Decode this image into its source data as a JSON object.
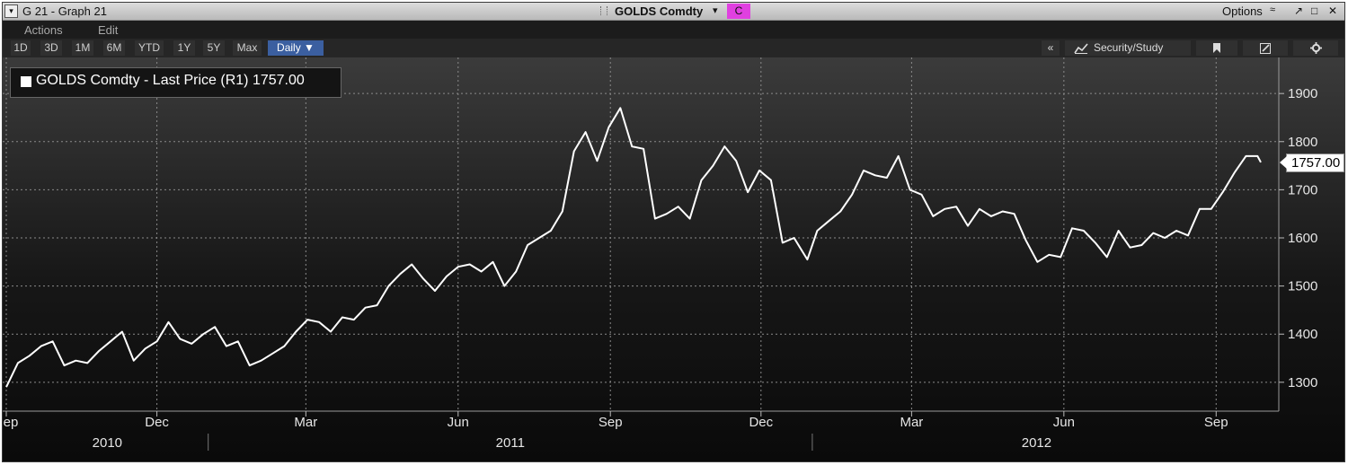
{
  "window": {
    "title": "G 21 - Graph 21",
    "dropdown_glyph": "▾",
    "ticker": "GOLDS Comdty",
    "ticker_caret": "▾",
    "c_badge": "C",
    "options_label": "Options",
    "options_caret": "≈",
    "buttons": {
      "popout": "↗",
      "minimize": "□",
      "close": "✕"
    }
  },
  "menu": {
    "actions": "Actions",
    "edit": "Edit"
  },
  "toolbar": {
    "ranges": [
      "1D",
      "3D",
      "1M",
      "6M",
      "YTD",
      "1Y",
      "5Y",
      "Max"
    ],
    "period": "Daily ▼",
    "collapse": "«",
    "security_study": "Security/Study",
    "security_icon": "chart-line-icon",
    "bookmark_icon": "bookmark-icon",
    "edit_icon": "pencil-icon",
    "settings_icon": "gear-icon"
  },
  "colors": {
    "accent_c": "#e040e0",
    "active_button": "#3b5fa0",
    "line": "#ffffff"
  },
  "chart_data": {
    "type": "line",
    "legend_text": "GOLDS Comdty - Last Price (R1) 1757.00",
    "last_value_label": "1757.00",
    "last_value": 1757,
    "y_axis_side": "right",
    "ylim": [
      1240,
      1960
    ],
    "y_ticks": [
      1300,
      1400,
      1500,
      1600,
      1700,
      1800,
      1900
    ],
    "x_range": [
      "2010-09-01",
      "2012-09-28"
    ],
    "x_ticks": [
      {
        "label": "Sep",
        "date": "2010-09-01"
      },
      {
        "label": "Dec",
        "date": "2010-12-01"
      },
      {
        "label": "Mar",
        "date": "2011-03-01"
      },
      {
        "label": "Jun",
        "date": "2011-06-01"
      },
      {
        "label": "Sep",
        "date": "2011-09-01"
      },
      {
        "label": "Dec",
        "date": "2011-12-01"
      },
      {
        "label": "Mar",
        "date": "2012-03-01"
      },
      {
        "label": "Jun",
        "date": "2012-06-01"
      },
      {
        "label": "Sep",
        "date": "2012-09-01"
      }
    ],
    "years": [
      {
        "label": "2010",
        "from": "2010-09-01",
        "to": "2011-01-01"
      },
      {
        "label": "2011",
        "from": "2011-01-01",
        "to": "2012-01-01"
      },
      {
        "label": "2012",
        "from": "2012-01-01",
        "to": "2012-09-28"
      }
    ],
    "grid": true,
    "series": [
      {
        "name": "GOLDS Comdty",
        "points": [
          [
            "2010-09-01",
            1290
          ],
          [
            "2010-09-08",
            1340
          ],
          [
            "2010-09-15",
            1355
          ],
          [
            "2010-09-22",
            1375
          ],
          [
            "2010-09-29",
            1385
          ],
          [
            "2010-10-06",
            1335
          ],
          [
            "2010-10-13",
            1345
          ],
          [
            "2010-10-20",
            1340
          ],
          [
            "2010-10-27",
            1365
          ],
          [
            "2010-11-03",
            1385
          ],
          [
            "2010-11-10",
            1405
          ],
          [
            "2010-11-17",
            1345
          ],
          [
            "2010-11-24",
            1370
          ],
          [
            "2010-12-01",
            1385
          ],
          [
            "2010-12-08",
            1425
          ],
          [
            "2010-12-15",
            1390
          ],
          [
            "2010-12-22",
            1380
          ],
          [
            "2010-12-29",
            1400
          ],
          [
            "2011-01-05",
            1415
          ],
          [
            "2011-01-12",
            1375
          ],
          [
            "2011-01-19",
            1385
          ],
          [
            "2011-01-26",
            1335
          ],
          [
            "2011-02-02",
            1345
          ],
          [
            "2011-02-09",
            1360
          ],
          [
            "2011-02-16",
            1375
          ],
          [
            "2011-02-23",
            1405
          ],
          [
            "2011-03-02",
            1430
          ],
          [
            "2011-03-09",
            1425
          ],
          [
            "2011-03-16",
            1405
          ],
          [
            "2011-03-23",
            1435
          ],
          [
            "2011-03-30",
            1430
          ],
          [
            "2011-04-06",
            1455
          ],
          [
            "2011-04-13",
            1460
          ],
          [
            "2011-04-20",
            1500
          ],
          [
            "2011-04-27",
            1525
          ],
          [
            "2011-05-04",
            1545
          ],
          [
            "2011-05-11",
            1515
          ],
          [
            "2011-05-18",
            1490
          ],
          [
            "2011-05-25",
            1520
          ],
          [
            "2011-06-01",
            1540
          ],
          [
            "2011-06-08",
            1545
          ],
          [
            "2011-06-15",
            1530
          ],
          [
            "2011-06-22",
            1550
          ],
          [
            "2011-06-29",
            1500
          ],
          [
            "2011-07-06",
            1530
          ],
          [
            "2011-07-13",
            1585
          ],
          [
            "2011-07-20",
            1600
          ],
          [
            "2011-07-27",
            1615
          ],
          [
            "2011-08-03",
            1655
          ],
          [
            "2011-08-10",
            1780
          ],
          [
            "2011-08-17",
            1820
          ],
          [
            "2011-08-24",
            1760
          ],
          [
            "2011-08-31",
            1830
          ],
          [
            "2011-09-07",
            1870
          ],
          [
            "2011-09-14",
            1790
          ],
          [
            "2011-09-21",
            1785
          ],
          [
            "2011-09-28",
            1640
          ],
          [
            "2011-10-05",
            1650
          ],
          [
            "2011-10-12",
            1665
          ],
          [
            "2011-10-19",
            1640
          ],
          [
            "2011-10-26",
            1720
          ],
          [
            "2011-11-02",
            1750
          ],
          [
            "2011-11-09",
            1790
          ],
          [
            "2011-11-16",
            1760
          ],
          [
            "2011-11-23",
            1695
          ],
          [
            "2011-11-30",
            1740
          ],
          [
            "2011-12-07",
            1720
          ],
          [
            "2011-12-14",
            1590
          ],
          [
            "2011-12-21",
            1600
          ],
          [
            "2011-12-29",
            1555
          ],
          [
            "2012-01-04",
            1615
          ],
          [
            "2012-01-11",
            1635
          ],
          [
            "2012-01-18",
            1655
          ],
          [
            "2012-01-25",
            1690
          ],
          [
            "2012-02-01",
            1740
          ],
          [
            "2012-02-08",
            1730
          ],
          [
            "2012-02-15",
            1725
          ],
          [
            "2012-02-22",
            1770
          ],
          [
            "2012-02-29",
            1700
          ],
          [
            "2012-03-07",
            1690
          ],
          [
            "2012-03-14",
            1645
          ],
          [
            "2012-03-21",
            1660
          ],
          [
            "2012-03-28",
            1665
          ],
          [
            "2012-04-04",
            1625
          ],
          [
            "2012-04-11",
            1660
          ],
          [
            "2012-04-18",
            1645
          ],
          [
            "2012-04-25",
            1655
          ],
          [
            "2012-05-02",
            1650
          ],
          [
            "2012-05-09",
            1595
          ],
          [
            "2012-05-16",
            1550
          ],
          [
            "2012-05-23",
            1565
          ],
          [
            "2012-05-30",
            1560
          ],
          [
            "2012-06-06",
            1620
          ],
          [
            "2012-06-13",
            1615
          ],
          [
            "2012-06-20",
            1590
          ],
          [
            "2012-06-27",
            1560
          ],
          [
            "2012-07-04",
            1615
          ],
          [
            "2012-07-11",
            1580
          ],
          [
            "2012-07-18",
            1585
          ],
          [
            "2012-07-25",
            1610
          ],
          [
            "2012-08-01",
            1600
          ],
          [
            "2012-08-08",
            1615
          ],
          [
            "2012-08-15",
            1605
          ],
          [
            "2012-08-22",
            1660
          ],
          [
            "2012-08-29",
            1660
          ],
          [
            "2012-09-05",
            1695
          ],
          [
            "2012-09-12",
            1735
          ],
          [
            "2012-09-19",
            1770
          ],
          [
            "2012-09-26",
            1770
          ],
          [
            "2012-09-28",
            1757
          ]
        ]
      }
    ]
  }
}
